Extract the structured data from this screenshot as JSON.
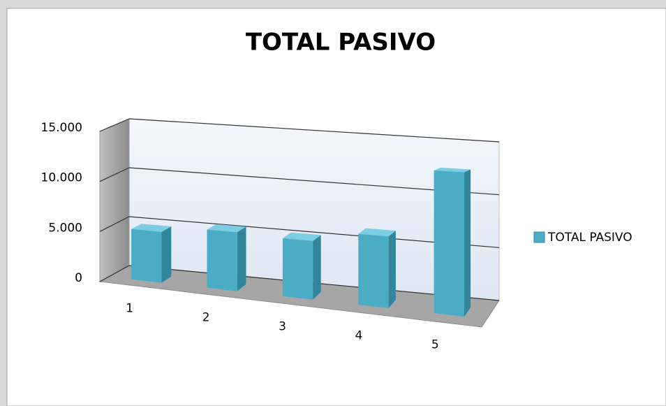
{
  "chart_data": {
    "type": "bar3d",
    "title": "TOTAL PASIVO",
    "categories": [
      "1",
      "2",
      "3",
      "4",
      "5"
    ],
    "series": [
      {
        "name": "TOTAL PASIVO",
        "color": "#4bacc6",
        "values": [
          5000,
          5600,
          5400,
          6400,
          12500
        ]
      }
    ],
    "ylim": [
      0,
      15000
    ],
    "yticks": [
      0,
      {
        "value": 5000,
        "label": "5.000"
      },
      {
        "value": 10000,
        "label": "10.000"
      },
      {
        "value": 15000,
        "label": "15.000"
      }
    ],
    "grid": true,
    "legend": "right"
  }
}
